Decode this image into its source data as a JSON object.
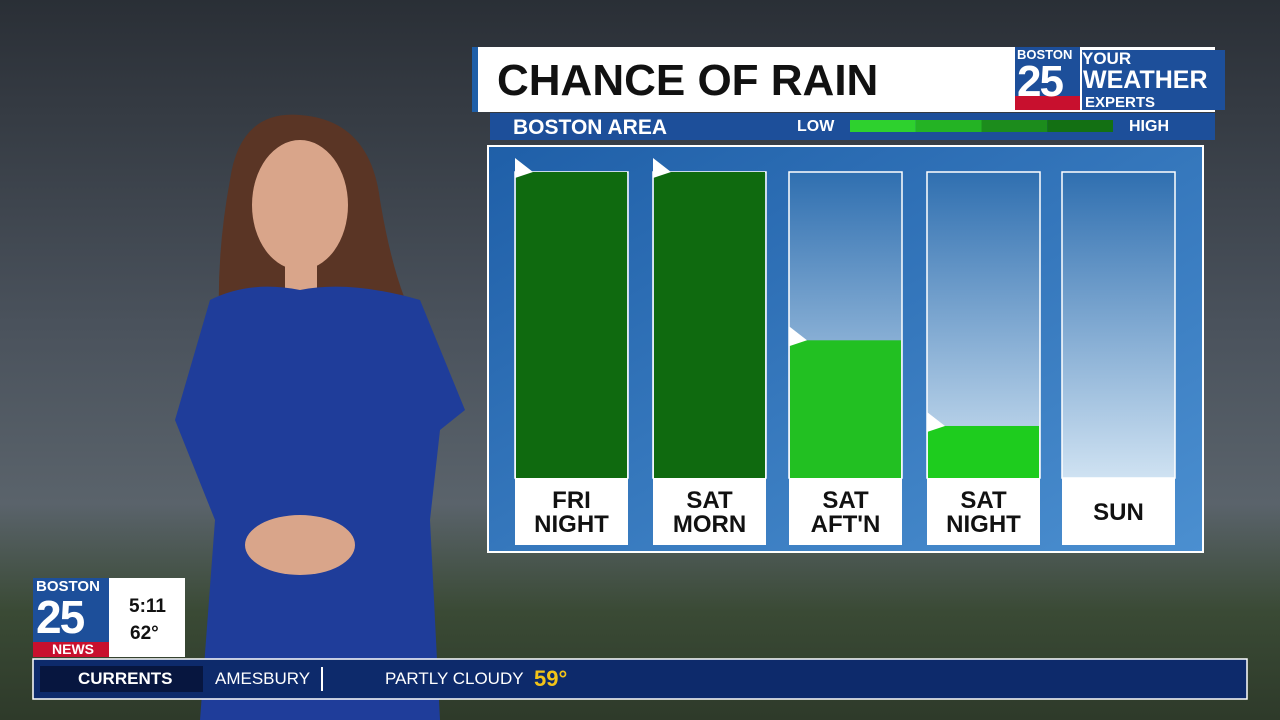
{
  "chart_data": {
    "type": "bar",
    "title": "CHANCE OF RAIN",
    "subtitle": "BOSTON AREA",
    "categories": [
      "FRI NIGHT",
      "SAT MORN",
      "SAT AFT'N",
      "SAT NIGHT",
      "SUN"
    ],
    "values": [
      100,
      100,
      45,
      17,
      0
    ],
    "colors": [
      "#0f6a0f",
      "#0f6a0f",
      "#22c022",
      "#1ecc1e",
      "#1ecc1e"
    ],
    "ylim": [
      0,
      100
    ],
    "scale_low": "LOW",
    "scale_high": "HIGH",
    "scale_colors": [
      "#2ed12e",
      "#24b324",
      "#1c8c1c",
      "#137013"
    ]
  },
  "brand": {
    "station": "BOSTON",
    "number": "25",
    "tagline": [
      "YOUR",
      "WEATHER",
      "EXPERTS"
    ],
    "news": "NEWS"
  },
  "clock": {
    "time": "5:11",
    "temperature": "62°"
  },
  "ticker": {
    "label": "CURRENTS",
    "location": "AMESBURY",
    "condition": "PARTLY CLOUDY",
    "temperature": "59°"
  }
}
